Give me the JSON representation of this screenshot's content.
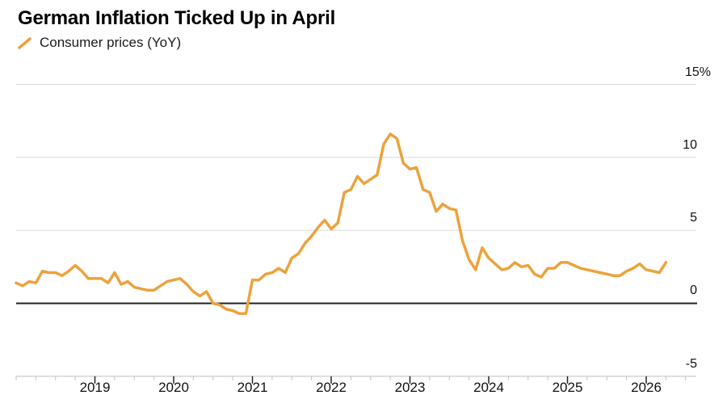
{
  "chart_data": {
    "type": "line",
    "title": "German Inflation Ticked Up in April",
    "x_start": "2018-01",
    "x_end": "2026-04",
    "frequency": "monthly",
    "series": [
      {
        "name": "Consumer prices (YoY)",
        "unit": "%",
        "values": [
          1.4,
          1.2,
          1.5,
          1.4,
          2.2,
          2.1,
          2.1,
          1.9,
          2.2,
          2.6,
          2.2,
          1.7,
          1.7,
          1.7,
          1.4,
          2.1,
          1.3,
          1.5,
          1.1,
          1.0,
          0.9,
          0.9,
          1.2,
          1.5,
          1.6,
          1.7,
          1.3,
          0.8,
          0.5,
          0.8,
          0.0,
          -0.1,
          -0.4,
          -0.5,
          -0.7,
          -0.7,
          1.6,
          1.6,
          2.0,
          2.1,
          2.4,
          2.1,
          3.1,
          3.4,
          4.1,
          4.6,
          5.2,
          5.7,
          5.1,
          5.5,
          7.6,
          7.8,
          8.7,
          8.2,
          8.5,
          8.8,
          10.9,
          11.6,
          11.3,
          9.6,
          9.2,
          9.3,
          7.8,
          7.6,
          6.3,
          6.8,
          6.5,
          6.4,
          4.3,
          3.0,
          2.3,
          3.8,
          3.1,
          2.7,
          2.3,
          2.4,
          2.8,
          2.5,
          2.6,
          2.0,
          1.8,
          2.4,
          2.4,
          2.8,
          2.8,
          2.6,
          2.4,
          2.3,
          2.2,
          2.1,
          2.0,
          1.9,
          1.9,
          2.2,
          2.4,
          2.7,
          2.3,
          2.2,
          2.1,
          2.8
        ]
      }
    ],
    "y_ticks": [
      {
        "v": 15,
        "label": "15%"
      },
      {
        "v": 10,
        "label": "10"
      },
      {
        "v": 5,
        "label": "5"
      },
      {
        "v": 0,
        "label": "0"
      },
      {
        "v": -5,
        "label": "-5"
      }
    ],
    "x_ticks_years": [
      "2019",
      "2020",
      "2021",
      "2022",
      "2023",
      "2024",
      "2025",
      "2026"
    ],
    "ylim": [
      -5,
      15
    ],
    "grid": "horizontal",
    "legend_position": "top-left",
    "zero_baseline": true
  },
  "colors": {
    "line": "#ECA23C",
    "grid": "#D8D8D8",
    "zero_line": "#222222",
    "axis_line": "#C6C6C6",
    "tick_major": "#222222",
    "tick_minor": "#C2C2C2",
    "text": "#111111"
  }
}
